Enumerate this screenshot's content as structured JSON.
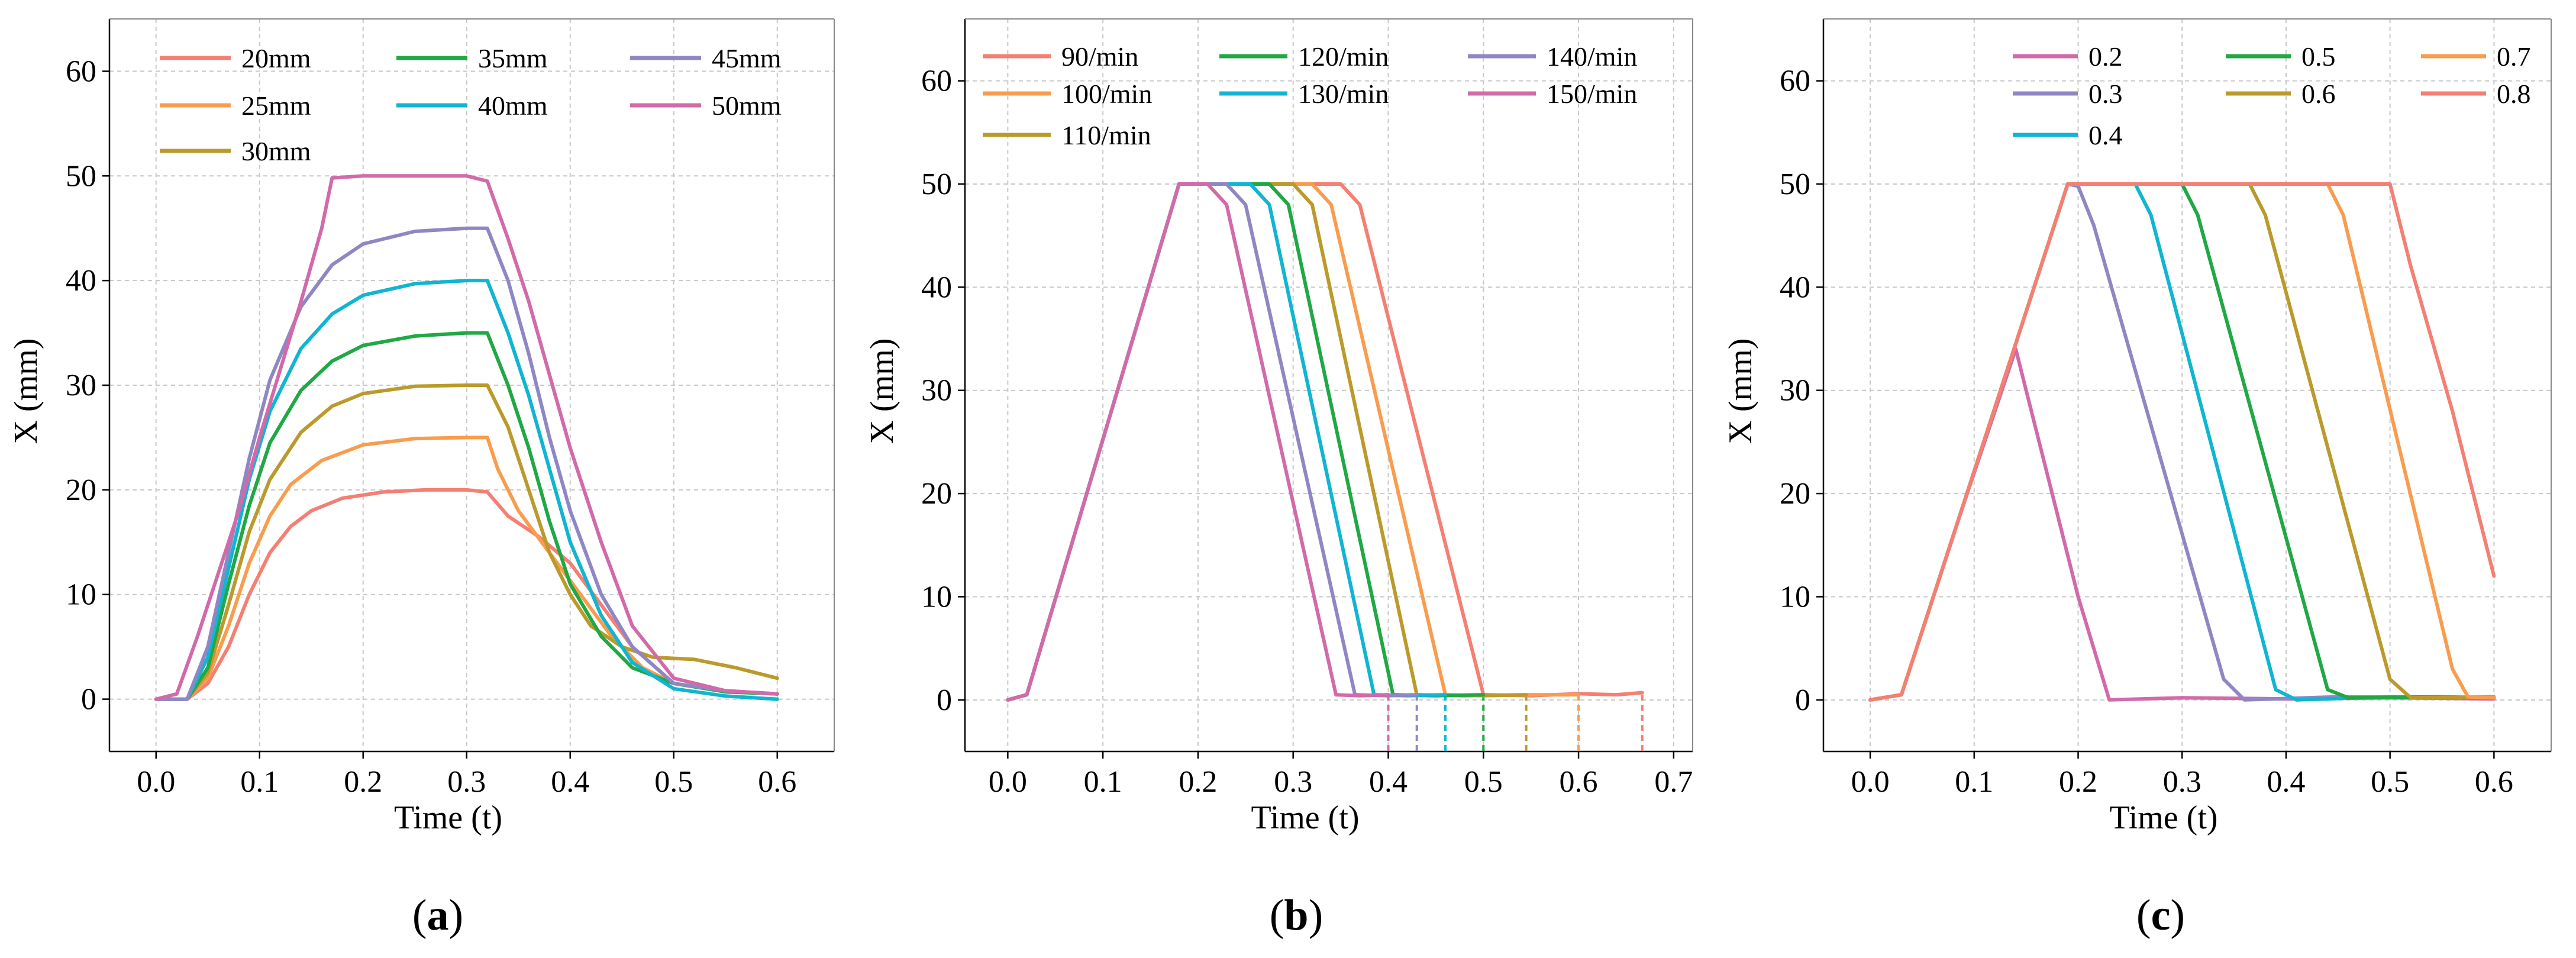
{
  "colors": {
    "salmon": "#f47f72",
    "orange": "#f99c4d",
    "olive": "#bb9a2c",
    "green": "#20a845",
    "cyan": "#10b5d2",
    "purple": "#8f87c4",
    "pink": "#d26aa9",
    "grid": "#c8c8c8",
    "axis": "#000000"
  },
  "panels": [
    {
      "label_open": "(",
      "label_letter": "a",
      "label_close": ")"
    },
    {
      "label_open": "(",
      "label_letter": "b",
      "label_close": ")"
    },
    {
      "label_open": "(",
      "label_letter": "c",
      "label_close": ")"
    }
  ],
  "chart_data": [
    {
      "type": "line",
      "panel": "a",
      "xlabel": "Time  (t)",
      "ylabel": "X  (mm)",
      "xlim": [
        -0.045,
        0.655
      ],
      "ylim": [
        -5,
        65
      ],
      "xticks": [
        0.0,
        0.1,
        0.2,
        0.3,
        0.4,
        0.5,
        0.6
      ],
      "xtick_labels": [
        "0.0",
        "0.1",
        "0.2",
        "0.3",
        "0.4",
        "0.5",
        "0.6"
      ],
      "yticks": [
        0,
        10,
        20,
        30,
        40,
        50,
        60
      ],
      "ytick_labels": [
        "0",
        "10",
        "20",
        "30",
        "40",
        "50",
        "60"
      ],
      "grid": true,
      "legend": {
        "position": "top",
        "columns": 3
      },
      "series": [
        {
          "name": "20mm",
          "color": "salmon",
          "legend_row": 0,
          "legend_col": 0,
          "x": [
            0,
            0.03,
            0.05,
            0.07,
            0.09,
            0.11,
            0.13,
            0.15,
            0.18,
            0.22,
            0.26,
            0.3,
            0.32,
            0.34,
            0.37,
            0.4,
            0.43,
            0.46,
            0.5,
            0.55,
            0.6
          ],
          "y": [
            0,
            0,
            1.5,
            5,
            10,
            14,
            16.5,
            18,
            19.2,
            19.8,
            20,
            20,
            19.8,
            17.5,
            15.5,
            13,
            9,
            5,
            1.5,
            0.8,
            0.5
          ]
        },
        {
          "name": "25mm",
          "color": "orange",
          "legend_row": 1,
          "legend_col": 0,
          "x": [
            0,
            0.03,
            0.05,
            0.07,
            0.09,
            0.11,
            0.13,
            0.16,
            0.2,
            0.25,
            0.3,
            0.32,
            0.33,
            0.35,
            0.38,
            0.41,
            0.44,
            0.47,
            0.5,
            0.55,
            0.6
          ],
          "y": [
            0,
            0,
            2,
            7,
            13,
            17.5,
            20.5,
            22.8,
            24.3,
            24.9,
            25,
            25,
            22,
            18,
            14,
            10,
            6,
            3,
            1.5,
            0.8,
            0.5
          ]
        },
        {
          "name": "30mm",
          "color": "olive",
          "legend_row": 2,
          "legend_col": 0,
          "x": [
            0,
            0.03,
            0.05,
            0.07,
            0.09,
            0.11,
            0.14,
            0.17,
            0.2,
            0.25,
            0.3,
            0.32,
            0.34,
            0.36,
            0.38,
            0.4,
            0.42,
            0.45,
            0.48,
            0.52,
            0.56,
            0.6
          ],
          "y": [
            0,
            0,
            2.5,
            9,
            16,
            21,
            25.5,
            28,
            29.2,
            29.9,
            30,
            30,
            26,
            20,
            14,
            10,
            7,
            5,
            4,
            3.8,
            3,
            2
          ]
        },
        {
          "name": "35mm",
          "color": "green",
          "legend_row": 0,
          "legend_col": 1,
          "x": [
            0,
            0.03,
            0.05,
            0.07,
            0.09,
            0.11,
            0.14,
            0.17,
            0.2,
            0.25,
            0.3,
            0.32,
            0.34,
            0.36,
            0.38,
            0.4,
            0.43,
            0.46,
            0.5,
            0.55,
            0.6
          ],
          "y": [
            0,
            0,
            3,
            11,
            18.5,
            24.5,
            29.5,
            32.3,
            33.8,
            34.7,
            35,
            35,
            30,
            24,
            17,
            11,
            6,
            3,
            1.5,
            0.7,
            0.5
          ]
        },
        {
          "name": "40mm",
          "color": "cyan",
          "legend_row": 1,
          "legend_col": 1,
          "x": [
            0,
            0.03,
            0.05,
            0.07,
            0.09,
            0.11,
            0.14,
            0.17,
            0.2,
            0.25,
            0.3,
            0.32,
            0.34,
            0.36,
            0.38,
            0.4,
            0.43,
            0.46,
            0.5,
            0.55,
            0.6
          ],
          "y": [
            0,
            0,
            4,
            12.5,
            21,
            27.5,
            33.5,
            36.8,
            38.6,
            39.7,
            40,
            40,
            35,
            29,
            22,
            15,
            8,
            3.5,
            1,
            0.3,
            0
          ]
        },
        {
          "name": "45mm",
          "color": "purple",
          "legend_row": 0,
          "legend_col": 2,
          "x": [
            0,
            0.03,
            0.05,
            0.07,
            0.09,
            0.11,
            0.14,
            0.17,
            0.2,
            0.25,
            0.3,
            0.32,
            0.34,
            0.36,
            0.38,
            0.4,
            0.43,
            0.46,
            0.5,
            0.55,
            0.6
          ],
          "y": [
            0,
            0,
            5,
            14,
            23,
            30.5,
            37.5,
            41.5,
            43.5,
            44.7,
            45,
            45,
            40,
            33,
            25,
            18,
            10,
            5,
            1.5,
            0.8,
            0.5
          ]
        },
        {
          "name": "50mm",
          "color": "pink",
          "legend_row": 1,
          "legend_col": 2,
          "x": [
            0,
            0.02,
            0.04,
            0.06,
            0.08,
            0.1,
            0.12,
            0.14,
            0.16,
            0.17,
            0.2,
            0.25,
            0.3,
            0.32,
            0.34,
            0.36,
            0.38,
            0.4,
            0.43,
            0.46,
            0.5,
            0.55,
            0.6
          ],
          "y": [
            0,
            0.5,
            6,
            12,
            18,
            25,
            31.5,
            38,
            45,
            49.8,
            50,
            50,
            50,
            49.5,
            44,
            38,
            31,
            24,
            15,
            7,
            2,
            0.8,
            0.5
          ]
        }
      ]
    },
    {
      "type": "line",
      "panel": "b",
      "xlabel": "Time  (t)",
      "ylabel": "X  (mm)",
      "xlim": [
        -0.045,
        0.72
      ],
      "ylim": [
        -5,
        66
      ],
      "xticks": [
        0.0,
        0.1,
        0.2,
        0.3,
        0.4,
        0.5,
        0.6,
        0.7
      ],
      "xtick_labels": [
        "0.0",
        "0.1",
        "0.2",
        "0.3",
        "0.4",
        "0.5",
        "0.6",
        "0.7"
      ],
      "yticks": [
        0,
        10,
        20,
        30,
        40,
        50,
        60
      ],
      "ytick_labels": [
        "0",
        "10",
        "20",
        "30",
        "40",
        "50",
        "60"
      ],
      "grid": true,
      "legend": {
        "position": "top",
        "columns": 3
      },
      "series": [
        {
          "name": "90/min",
          "color": "salmon",
          "legend_row": 0,
          "legend_col": 0,
          "x": [
            0,
            0.02,
            0.18,
            0.35,
            0.37,
            0.5,
            0.55,
            0.6,
            0.64,
            0.667
          ],
          "y": [
            0,
            0.5,
            50,
            50,
            48,
            0.5,
            0.4,
            0.6,
            0.5,
            0.7
          ]
        },
        {
          "name": "100/min",
          "color": "orange",
          "legend_row": 1,
          "legend_col": 0,
          "x": [
            0,
            0.02,
            0.18,
            0.32,
            0.34,
            0.46,
            0.5,
            0.55,
            0.6
          ],
          "y": [
            0,
            0.5,
            50,
            50,
            48,
            0.5,
            0.4,
            0.5,
            0.5
          ]
        },
        {
          "name": "110/min",
          "color": "olive",
          "legend_row": 2,
          "legend_col": 0,
          "x": [
            0,
            0.02,
            0.18,
            0.3,
            0.32,
            0.43,
            0.48,
            0.545
          ],
          "y": [
            0,
            0.5,
            50,
            50,
            48,
            0.5,
            0.4,
            0.5
          ]
        },
        {
          "name": "120/min",
          "color": "green",
          "legend_row": 0,
          "legend_col": 1,
          "x": [
            0,
            0.02,
            0.18,
            0.275,
            0.295,
            0.405,
            0.45,
            0.5
          ],
          "y": [
            0,
            0.5,
            50,
            50,
            48,
            0.5,
            0.4,
            0.5
          ]
        },
        {
          "name": "130/min",
          "color": "cyan",
          "legend_row": 1,
          "legend_col": 1,
          "x": [
            0,
            0.02,
            0.18,
            0.255,
            0.275,
            0.385,
            0.42,
            0.46
          ],
          "y": [
            0,
            0.5,
            50,
            50,
            48,
            0.5,
            0.4,
            0.5
          ]
        },
        {
          "name": "140/min",
          "color": "purple",
          "legend_row": 0,
          "legend_col": 2,
          "x": [
            0,
            0.02,
            0.18,
            0.23,
            0.25,
            0.365,
            0.4,
            0.43
          ],
          "y": [
            0,
            0.5,
            50,
            50,
            48,
            0.5,
            0.4,
            0.5
          ]
        },
        {
          "name": "150/min",
          "color": "pink",
          "legend_row": 1,
          "legend_col": 2,
          "x": [
            0,
            0.02,
            0.18,
            0.21,
            0.23,
            0.345,
            0.37,
            0.4
          ],
          "y": [
            0,
            0.5,
            50,
            50,
            48,
            0.5,
            0.4,
            0.5
          ]
        }
      ],
      "end_markers": [
        {
          "x": 0.4,
          "color": "pink"
        },
        {
          "x": 0.43,
          "color": "purple"
        },
        {
          "x": 0.46,
          "color": "cyan"
        },
        {
          "x": 0.5,
          "color": "green"
        },
        {
          "x": 0.545,
          "color": "olive"
        },
        {
          "x": 0.6,
          "color": "orange"
        },
        {
          "x": 0.667,
          "color": "salmon"
        }
      ]
    },
    {
      "type": "line",
      "panel": "c",
      "xlabel": "Time  (t)",
      "ylabel": "X  (mm)",
      "xlim": [
        -0.045,
        0.655
      ],
      "ylim": [
        -5,
        66
      ],
      "xticks": [
        0.0,
        0.1,
        0.2,
        0.3,
        0.4,
        0.5,
        0.6
      ],
      "xtick_labels": [
        "0.0",
        "0.1",
        "0.2",
        "0.3",
        "0.4",
        "0.5",
        "0.6"
      ],
      "yticks": [
        0,
        10,
        20,
        30,
        40,
        50,
        60
      ],
      "ytick_labels": [
        "0",
        "10",
        "20",
        "30",
        "40",
        "50",
        "60"
      ],
      "grid": true,
      "legend": {
        "position": "top-right",
        "columns": 3
      },
      "series": [
        {
          "name": "0.2",
          "color": "pink",
          "legend_row": 0,
          "legend_col": 0,
          "x": [
            0,
            0.03,
            0.09,
            0.14,
            0.15,
            0.18,
            0.2,
            0.23,
            0.3,
            0.4,
            0.5,
            0.6
          ],
          "y": [
            0,
            0.5,
            19,
            34,
            30,
            18,
            10,
            0,
            0.2,
            0.1,
            0.2,
            0.1
          ]
        },
        {
          "name": "0.3",
          "color": "purple",
          "legend_row": 1,
          "legend_col": 0,
          "x": [
            0,
            0.03,
            0.19,
            0.2,
            0.215,
            0.34,
            0.36,
            0.45,
            0.6
          ],
          "y": [
            0,
            0.5,
            50,
            49.8,
            46,
            2,
            0,
            0.3,
            0.2
          ]
        },
        {
          "name": "0.4",
          "color": "cyan",
          "legend_row": 2,
          "legend_col": 0,
          "x": [
            0,
            0.03,
            0.19,
            0.255,
            0.27,
            0.39,
            0.41,
            0.5,
            0.6
          ],
          "y": [
            0,
            0.5,
            50,
            50,
            47,
            1,
            0,
            0.3,
            0.2
          ]
        },
        {
          "name": "0.5",
          "color": "green",
          "legend_row": 0,
          "legend_col": 1,
          "x": [
            0,
            0.03,
            0.19,
            0.3,
            0.315,
            0.44,
            0.46,
            0.55,
            0.6
          ],
          "y": [
            0,
            0.5,
            50,
            50,
            47,
            1,
            0.2,
            0.3,
            0.2
          ]
        },
        {
          "name": "0.6",
          "color": "olive",
          "legend_row": 1,
          "legend_col": 1,
          "x": [
            0,
            0.03,
            0.19,
            0.365,
            0.38,
            0.5,
            0.52,
            0.6
          ],
          "y": [
            0,
            0.5,
            50,
            50,
            47,
            2,
            0.2,
            0.3
          ]
        },
        {
          "name": "0.7",
          "color": "orange",
          "legend_row": 0,
          "legend_col": 2,
          "x": [
            0,
            0.03,
            0.19,
            0.3,
            0.44,
            0.455,
            0.56,
            0.575,
            0.6
          ],
          "y": [
            0,
            0.5,
            50,
            50,
            50,
            47,
            3,
            0.3,
            0.2
          ]
        },
        {
          "name": "0.8",
          "color": "salmon",
          "legend_row": 1,
          "legend_col": 2,
          "x": [
            0,
            0.03,
            0.19,
            0.3,
            0.4,
            0.5,
            0.52,
            0.56,
            0.6
          ],
          "y": [
            0,
            0.5,
            50,
            50,
            50,
            50,
            42,
            28,
            12
          ]
        }
      ]
    }
  ]
}
